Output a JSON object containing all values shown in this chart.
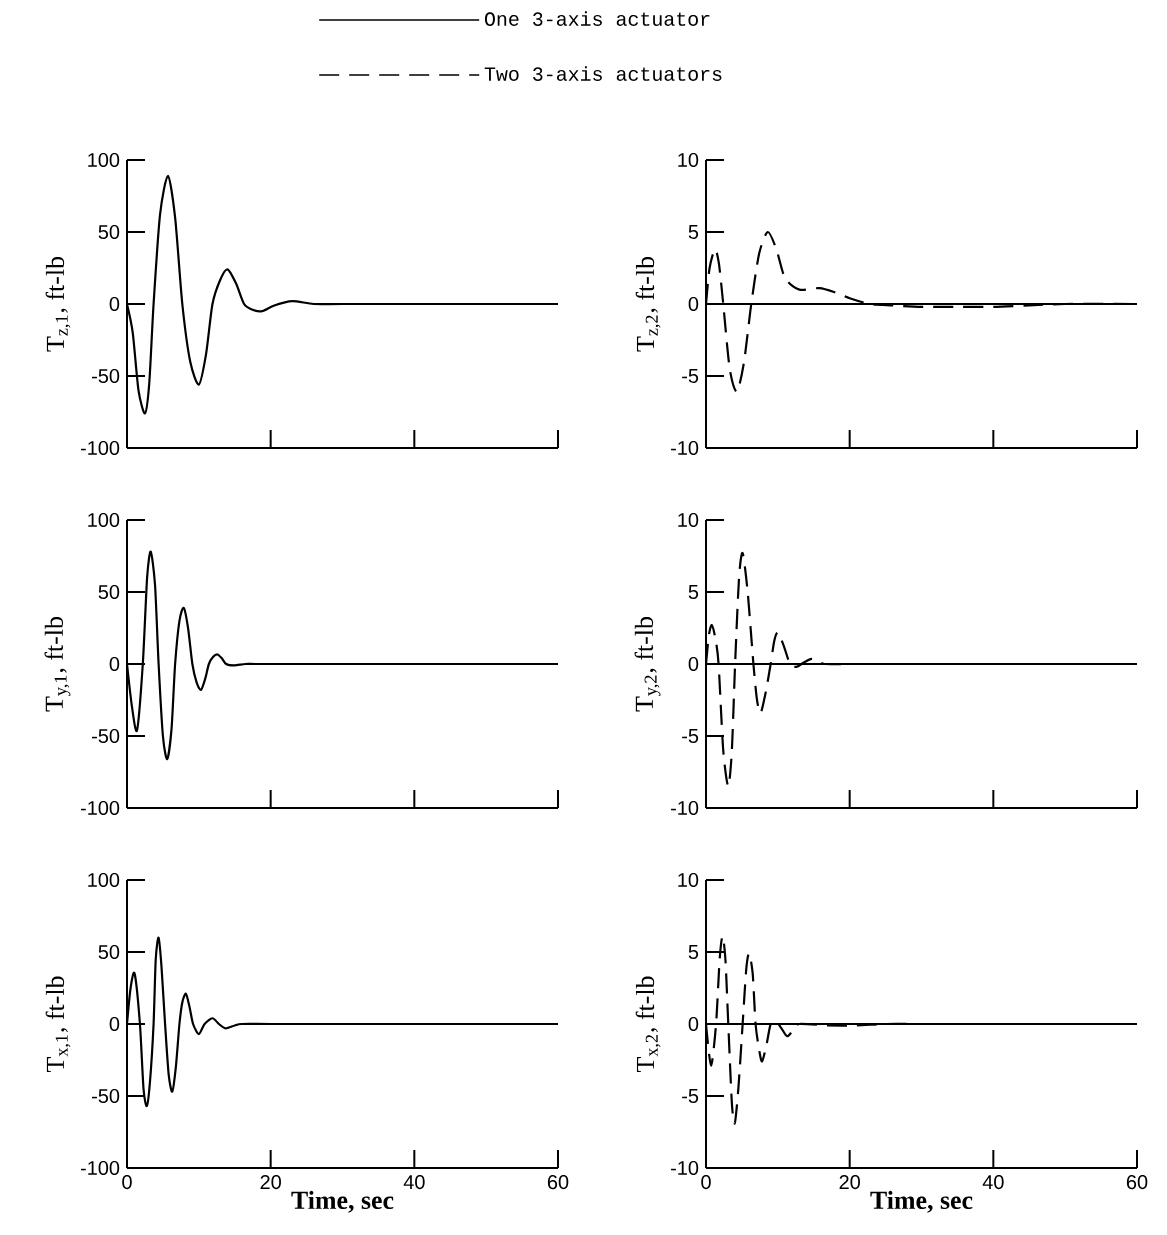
{
  "chart_data": [
    {
      "type": "line",
      "xlim": [
        0,
        60
      ],
      "xticks": [
        {
          "value": 0,
          "label": null
        },
        {
          "value": 20,
          "label": null
        },
        {
          "value": 40,
          "label": null
        },
        {
          "value": 60,
          "label": null
        }
      ],
      "ylim": [
        -100,
        100
      ],
      "yticks": [
        -100,
        -50,
        0,
        50,
        100
      ],
      "ylabel": "T$_{z,1}$, ft-lb",
      "tick_labels": "y",
      "legend": "top",
      "line_style": "solid",
      "series": [
        {
          "name": "One 3-axis actuator",
          "color": "#000000",
          "x": [
            0,
            0.8,
            1.6,
            2.5,
            3.1,
            3.7,
            4.6,
            5.7,
            6.7,
            7.7,
            8.8,
            10,
            11,
            11.9,
            13,
            14,
            15.2,
            16.3,
            17.5,
            18.8,
            20.5,
            23,
            26,
            30,
            40,
            50,
            60
          ],
          "values": [
            0,
            -20,
            -60,
            -76,
            -55,
            0,
            62,
            89,
            60,
            0,
            -40,
            -56,
            -35,
            0,
            17,
            24,
            14,
            0,
            -4,
            -5,
            -1,
            2,
            0,
            0,
            0,
            0,
            0
          ]
        }
      ]
    },
    {
      "type": "line",
      "xlim": [
        0,
        60
      ],
      "xticks": [
        {
          "value": 0,
          "label": null
        },
        {
          "value": 20,
          "label": null
        },
        {
          "value": 40,
          "label": null
        },
        {
          "value": 60,
          "label": null
        }
      ],
      "ylim": [
        -10,
        10
      ],
      "yticks": [
        -10,
        -5,
        0,
        5,
        10
      ],
      "ylabel": "T$_{z,2}$, ft-lb",
      "tick_labels": "y",
      "legend": "top",
      "line_style": "dashed",
      "ref_lines": [
        {
          "axis": "y",
          "value": 0
        }
      ],
      "series": [
        {
          "name": "Two 3-axis actuators",
          "color": "#000000",
          "x": [
            0,
            0.5,
            1.25,
            1.8,
            2.4,
            3.3,
            4.3,
            5.3,
            6.3,
            7.4,
            8.6,
            9.8,
            11,
            13,
            15.8,
            18,
            20,
            22.8,
            26,
            30,
            35,
            40,
            45,
            50,
            60
          ],
          "values": [
            0,
            2.5,
            3.8,
            2.8,
            0,
            -4.5,
            -6.1,
            -4,
            0,
            3.5,
            5.0,
            3.8,
            1.8,
            1.0,
            1.1,
            0.8,
            0.4,
            0,
            -0.1,
            -0.2,
            -0.2,
            -0.2,
            -0.1,
            0,
            0
          ]
        }
      ]
    },
    {
      "type": "line",
      "xlim": [
        0,
        60
      ],
      "xticks": [
        {
          "value": 0,
          "label": null
        },
        {
          "value": 20,
          "label": null
        },
        {
          "value": 40,
          "label": null
        },
        {
          "value": 60,
          "label": null
        }
      ],
      "ylim": [
        -100,
        100
      ],
      "yticks": [
        -100,
        -50,
        0,
        50,
        100
      ],
      "ylabel": "T$_{y,1}$, ft-lb",
      "tick_labels": "y",
      "line_style": "solid",
      "series": [
        {
          "color": "#000000",
          "x": [
            0,
            0.7,
            1.4,
            2.2,
            2.8,
            3.3,
            3.9,
            4.4,
            5.0,
            5.6,
            6.2,
            6.7,
            7.3,
            7.9,
            8.5,
            9.1,
            9.7,
            10.3,
            10.9,
            11.4,
            12.0,
            12.6,
            13.2,
            13.8,
            14.9,
            16.5,
            18,
            25,
            40,
            60
          ],
          "values": [
            0,
            -30,
            -46,
            0,
            60,
            78,
            55,
            0,
            -50,
            -66,
            -45,
            0,
            30,
            39,
            25,
            0,
            -13,
            -18,
            -10,
            0,
            5,
            6.6,
            4,
            0,
            -1,
            0,
            0,
            0,
            0,
            0
          ]
        }
      ]
    },
    {
      "type": "line",
      "xlim": [
        0,
        60
      ],
      "xticks": [
        {
          "value": 0,
          "label": null
        },
        {
          "value": 20,
          "label": null
        },
        {
          "value": 40,
          "label": null
        },
        {
          "value": 60,
          "label": null
        }
      ],
      "ylim": [
        -10,
        10
      ],
      "yticks": [
        -10,
        -5,
        0,
        5,
        10
      ],
      "ylabel": "T$_{y,2}$, ft-lb",
      "tick_labels": "y",
      "line_style": "dashed",
      "ref_lines": [
        {
          "axis": "y",
          "value": 0
        }
      ],
      "series": [
        {
          "color": "#000000",
          "x": [
            0,
            0.4,
            0.8,
            1.3,
            1.75,
            2.4,
            3.1,
            3.6,
            4.05,
            4.6,
            5.1,
            5.8,
            6.6,
            7.1,
            7.6,
            8.3,
            9.0,
            9.5,
            10.0,
            10.8,
            11.7,
            12.6,
            13.6,
            14.7,
            15.6,
            16.5,
            20,
            30,
            40,
            50,
            60
          ],
          "values": [
            0,
            2,
            2.7,
            1.8,
            0,
            -6,
            -8.5,
            -6,
            0,
            6,
            7.7,
            5,
            0,
            -2.5,
            -3.4,
            -2,
            0,
            1.6,
            2.2,
            1.3,
            0,
            -0.2,
            0.1,
            0.35,
            0.2,
            0,
            0,
            0,
            0,
            0,
            0
          ]
        }
      ]
    },
    {
      "type": "line",
      "xlim": [
        0,
        60
      ],
      "xticks": [
        0,
        20,
        40,
        60
      ],
      "ylim": [
        -100,
        100
      ],
      "yticks": [
        -100,
        -50,
        0,
        50,
        100
      ],
      "ylabel": "T$_{x,1}$, ft-lb",
      "xlabel": "Time, sec",
      "line_style": "solid",
      "series": [
        {
          "color": "#000000",
          "x": [
            0,
            0.5,
            1.06,
            1.8,
            2.3,
            2.76,
            3.2,
            3.7,
            4.0,
            4.4,
            4.8,
            5.3,
            5.8,
            6.3,
            6.8,
            7.3,
            7.7,
            8.2,
            8.7,
            9.2,
            10.0,
            10.8,
            11.9,
            12.8,
            13.7,
            15,
            16,
            20,
            30,
            40,
            60
          ],
          "values": [
            0,
            25,
            35,
            0,
            -45,
            -57,
            -40,
            0,
            45,
            60,
            40,
            0,
            -35,
            -47,
            -30,
            0,
            15,
            21,
            12,
            0,
            -7,
            0,
            4,
            0,
            -3,
            -1,
            0,
            0,
            0,
            0,
            0
          ]
        }
      ]
    },
    {
      "type": "line",
      "xlim": [
        0,
        60
      ],
      "xticks": [
        0,
        20,
        40,
        60
      ],
      "ylim": [
        -10,
        10
      ],
      "yticks": [
        -10,
        -5,
        0,
        5,
        10
      ],
      "ylabel": "T$_{x,2}$, ft-lb",
      "xlabel": "Time, sec",
      "line_style": "dashed",
      "ref_lines": [
        {
          "axis": "y",
          "value": 0
        }
      ],
      "series": [
        {
          "color": "#000000",
          "x": [
            0,
            0.7,
            1.4,
            1.9,
            2.3,
            2.7,
            3.1,
            3.6,
            4.0,
            4.5,
            5.1,
            5.6,
            6.0,
            6.5,
            6.9,
            7.4,
            7.8,
            8.4,
            9.0,
            9.7,
            10.5,
            11.3,
            12.2,
            13,
            17,
            21,
            25,
            30,
            40,
            60
          ],
          "values": [
            0,
            -2.9,
            0,
            4.5,
            6.1,
            4.5,
            0,
            -5.5,
            -6.9,
            -4.5,
            0,
            3.8,
            4.9,
            3.5,
            0,
            -1.8,
            -2.6,
            -1.5,
            0,
            0.2,
            -0.3,
            -0.85,
            -0.4,
            0,
            -0.1,
            -0.1,
            0,
            0,
            0,
            0
          ]
        }
      ]
    }
  ]
}
